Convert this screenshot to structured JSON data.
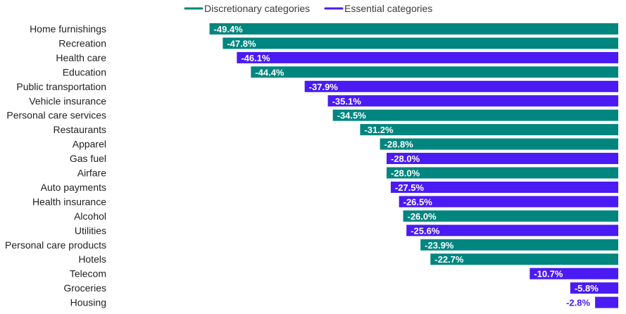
{
  "chart_data": {
    "type": "bar",
    "orientation": "horizontal",
    "xlim": [
      -50,
      0
    ],
    "legend": {
      "placement": "top-center",
      "entries": [
        {
          "key": "discretionary",
          "label": "Discretionary categories",
          "color": "#00857f"
        },
        {
          "key": "essential",
          "label": "Essential categories",
          "color": "#4a1bf2"
        }
      ]
    },
    "categories": [
      "Home furnishings",
      "Recreation",
      "Health care",
      "Education",
      "Public transportation",
      "Vehicle insurance",
      "Personal care services",
      "Restaurants",
      "Apparel",
      "Gas fuel",
      "Airfare",
      "Auto payments",
      "Health insurance",
      "Alcohol",
      "Utilities",
      "Personal care products",
      "Hotels",
      "Telecom",
      "Groceries",
      "Housing"
    ],
    "values": [
      -49.4,
      -47.8,
      -46.1,
      -44.4,
      -37.9,
      -35.1,
      -34.5,
      -31.2,
      -28.8,
      -28.0,
      -28.0,
      -27.5,
      -26.5,
      -26.0,
      -25.6,
      -23.9,
      -22.7,
      -10.7,
      -5.8,
      -2.8
    ],
    "value_labels": [
      "-49.4%",
      "-47.8%",
      "-46.1%",
      "-44.4%",
      "-37.9%",
      "-35.1%",
      "-34.5%",
      "-31.2%",
      "-28.8%",
      "-28.0%",
      "-28.0%",
      "-27.5%",
      "-26.5%",
      "-26.0%",
      "-25.6%",
      "-23.9%",
      "-22.7%",
      "-10.7%",
      "-5.8%",
      "-2.8%"
    ],
    "groups": [
      "discretionary",
      "discretionary",
      "essential",
      "discretionary",
      "essential",
      "essential",
      "discretionary",
      "discretionary",
      "discretionary",
      "essential",
      "discretionary",
      "essential",
      "essential",
      "discretionary",
      "essential",
      "discretionary",
      "discretionary",
      "essential",
      "essential",
      "essential"
    ]
  }
}
